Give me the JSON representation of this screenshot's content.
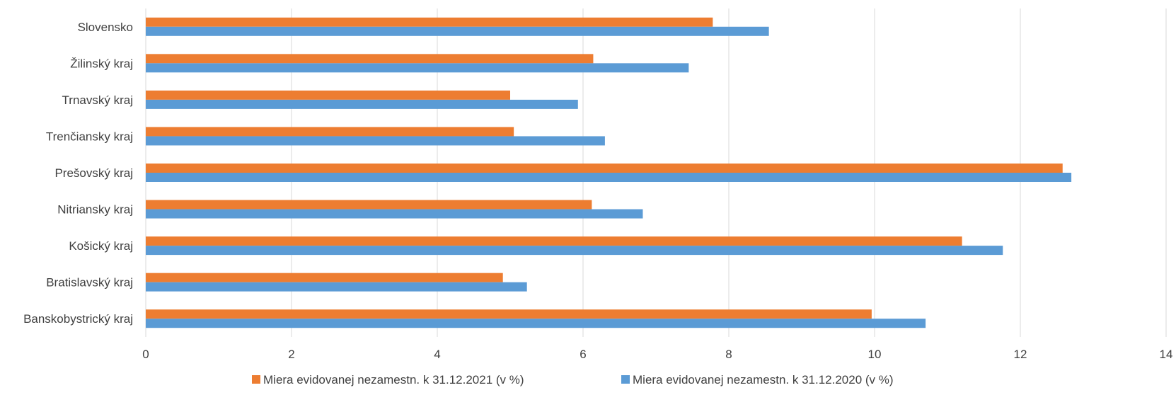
{
  "chart_data": {
    "type": "bar",
    "orientation": "horizontal",
    "categories": [
      "Slovensko",
      "Žilinský kraj",
      "Trnavský kraj",
      "Trenčiansky kraj",
      "Prešovský kraj",
      "Nitriansky kraj",
      "Košický kraj",
      "Bratislavský kraj",
      "Banskobystrický kraj"
    ],
    "series": [
      {
        "name": "Miera evidovanej nezamestn. k 31.12.2021 (v %)",
        "color": "#ED7D31",
        "values": [
          7.78,
          6.14,
          5.0,
          5.05,
          12.58,
          6.12,
          11.2,
          4.9,
          9.96
        ]
      },
      {
        "name": "Miera evidovanej nezamestn. k 31.12.2020 (v %)",
        "color": "#5B9BD5",
        "values": [
          8.55,
          7.45,
          5.93,
          6.3,
          12.7,
          6.82,
          11.76,
          5.23,
          10.7
        ]
      }
    ],
    "xlim": [
      0,
      14
    ],
    "xticks": [
      "0",
      "2",
      "4",
      "6",
      "8",
      "10",
      "12",
      "14"
    ],
    "grid": "vertical",
    "legend_position": "bottom",
    "title": "",
    "xlabel": "",
    "ylabel": ""
  }
}
